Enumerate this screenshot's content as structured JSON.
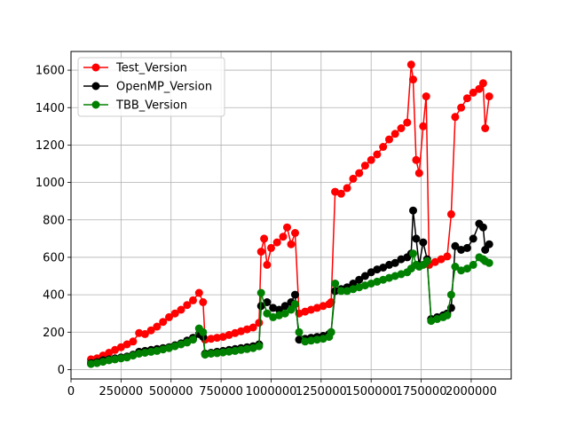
{
  "chart_data": {
    "type": "line",
    "title": "",
    "xlabel": "",
    "ylabel": "",
    "xlim": [
      0,
      2200000
    ],
    "ylim": [
      -50,
      1700
    ],
    "xticks": [
      0,
      250000,
      500000,
      750000,
      1000000,
      1250000,
      1500000,
      1750000,
      2000000
    ],
    "xtick_labels": [
      "0",
      "250000",
      "500000",
      "750000",
      "1000000",
      "1250000",
      "1500000",
      "1750000",
      "2000000"
    ],
    "yticks": [
      0,
      200,
      400,
      600,
      800,
      1000,
      1200,
      1400,
      1600
    ],
    "ytick_labels": [
      "0",
      "200",
      "400",
      "600",
      "800",
      "1000",
      "1200",
      "1400",
      "1600"
    ],
    "grid": true,
    "legend_position": "top-left",
    "series": [
      {
        "name": "Test_Version",
        "color": "#ff0000",
        "x": [
          100000,
          130000,
          160000,
          190000,
          220000,
          250000,
          280000,
          310000,
          340000,
          370000,
          400000,
          430000,
          460000,
          490000,
          520000,
          550000,
          580000,
          610000,
          640000,
          660000,
          670000,
          700000,
          730000,
          760000,
          790000,
          820000,
          850000,
          880000,
          910000,
          940000,
          950000,
          965000,
          980000,
          1000000,
          1030000,
          1060000,
          1080000,
          1100000,
          1120000,
          1140000,
          1170000,
          1200000,
          1230000,
          1260000,
          1290000,
          1300000,
          1320000,
          1350000,
          1380000,
          1410000,
          1440000,
          1470000,
          1500000,
          1530000,
          1560000,
          1590000,
          1620000,
          1650000,
          1680000,
          1700000,
          1710000,
          1725000,
          1740000,
          1760000,
          1775000,
          1790000,
          1820000,
          1850000,
          1880000,
          1900000,
          1920000,
          1950000,
          1980000,
          2010000,
          2040000,
          2060000,
          2070000,
          2090000
        ],
        "y": [
          55,
          60,
          75,
          90,
          105,
          120,
          135,
          150,
          195,
          190,
          210,
          230,
          255,
          280,
          300,
          320,
          345,
          370,
          410,
          360,
          160,
          165,
          170,
          175,
          185,
          195,
          205,
          215,
          225,
          250,
          630,
          700,
          560,
          650,
          680,
          710,
          760,
          670,
          730,
          300,
          310,
          320,
          330,
          340,
          350,
          360,
          950,
          940,
          970,
          1020,
          1050,
          1090,
          1120,
          1150,
          1190,
          1230,
          1260,
          1290,
          1320,
          1630,
          1550,
          1120,
          1050,
          1300,
          1460,
          560,
          575,
          590,
          605,
          830,
          1350,
          1400,
          1450,
          1480,
          1500,
          1530,
          1290,
          1460
        ]
      },
      {
        "name": "OpenMP_Version",
        "color": "#000000",
        "x": [
          100000,
          130000,
          160000,
          190000,
          220000,
          250000,
          280000,
          310000,
          340000,
          370000,
          400000,
          430000,
          460000,
          490000,
          520000,
          550000,
          580000,
          610000,
          640000,
          660000,
          670000,
          700000,
          730000,
          760000,
          790000,
          820000,
          850000,
          880000,
          910000,
          940000,
          950000,
          980000,
          1010000,
          1040000,
          1070000,
          1100000,
          1120000,
          1140000,
          1170000,
          1200000,
          1230000,
          1260000,
          1290000,
          1300000,
          1320000,
          1350000,
          1380000,
          1410000,
          1440000,
          1470000,
          1500000,
          1530000,
          1560000,
          1590000,
          1620000,
          1650000,
          1680000,
          1700000,
          1710000,
          1725000,
          1740000,
          1760000,
          1780000,
          1800000,
          1830000,
          1860000,
          1880000,
          1900000,
          1920000,
          1950000,
          1980000,
          2010000,
          2040000,
          2060000,
          2070000,
          2090000
        ],
        "y": [
          35,
          40,
          50,
          55,
          60,
          65,
          70,
          80,
          95,
          100,
          105,
          110,
          115,
          120,
          130,
          140,
          155,
          170,
          190,
          175,
          85,
          90,
          95,
          100,
          105,
          110,
          115,
          120,
          125,
          135,
          340,
          360,
          330,
          320,
          340,
          360,
          400,
          160,
          165,
          170,
          175,
          180,
          190,
          200,
          420,
          430,
          440,
          460,
          480,
          500,
          520,
          535,
          545,
          560,
          570,
          590,
          600,
          620,
          850,
          700,
          560,
          680,
          590,
          270,
          280,
          290,
          300,
          330,
          660,
          640,
          650,
          700,
          780,
          760,
          640,
          670
        ]
      },
      {
        "name": "TBB_Version",
        "color": "#008000",
        "x": [
          100000,
          130000,
          160000,
          190000,
          220000,
          250000,
          280000,
          310000,
          340000,
          370000,
          400000,
          430000,
          460000,
          490000,
          520000,
          550000,
          580000,
          610000,
          640000,
          660000,
          670000,
          700000,
          730000,
          760000,
          790000,
          820000,
          850000,
          880000,
          910000,
          940000,
          950000,
          980000,
          1010000,
          1040000,
          1070000,
          1100000,
          1120000,
          1140000,
          1170000,
          1200000,
          1230000,
          1260000,
          1290000,
          1300000,
          1320000,
          1350000,
          1380000,
          1410000,
          1440000,
          1470000,
          1500000,
          1530000,
          1560000,
          1590000,
          1620000,
          1650000,
          1680000,
          1700000,
          1710000,
          1725000,
          1740000,
          1760000,
          1780000,
          1800000,
          1830000,
          1860000,
          1880000,
          1900000,
          1920000,
          1950000,
          1980000,
          2010000,
          2040000,
          2060000,
          2070000,
          2090000
        ],
        "y": [
          30,
          35,
          42,
          50,
          55,
          60,
          65,
          75,
          85,
          90,
          95,
          100,
          108,
          115,
          125,
          135,
          145,
          160,
          220,
          200,
          80,
          85,
          88,
          92,
          96,
          100,
          105,
          110,
          115,
          125,
          410,
          300,
          280,
          290,
          300,
          320,
          350,
          200,
          150,
          155,
          160,
          165,
          175,
          200,
          460,
          420,
          420,
          430,
          440,
          450,
          460,
          470,
          480,
          490,
          500,
          510,
          520,
          540,
          620,
          560,
          550,
          560,
          580,
          260,
          270,
          280,
          290,
          400,
          550,
          530,
          540,
          560,
          600,
          590,
          580,
          570
        ]
      }
    ]
  }
}
